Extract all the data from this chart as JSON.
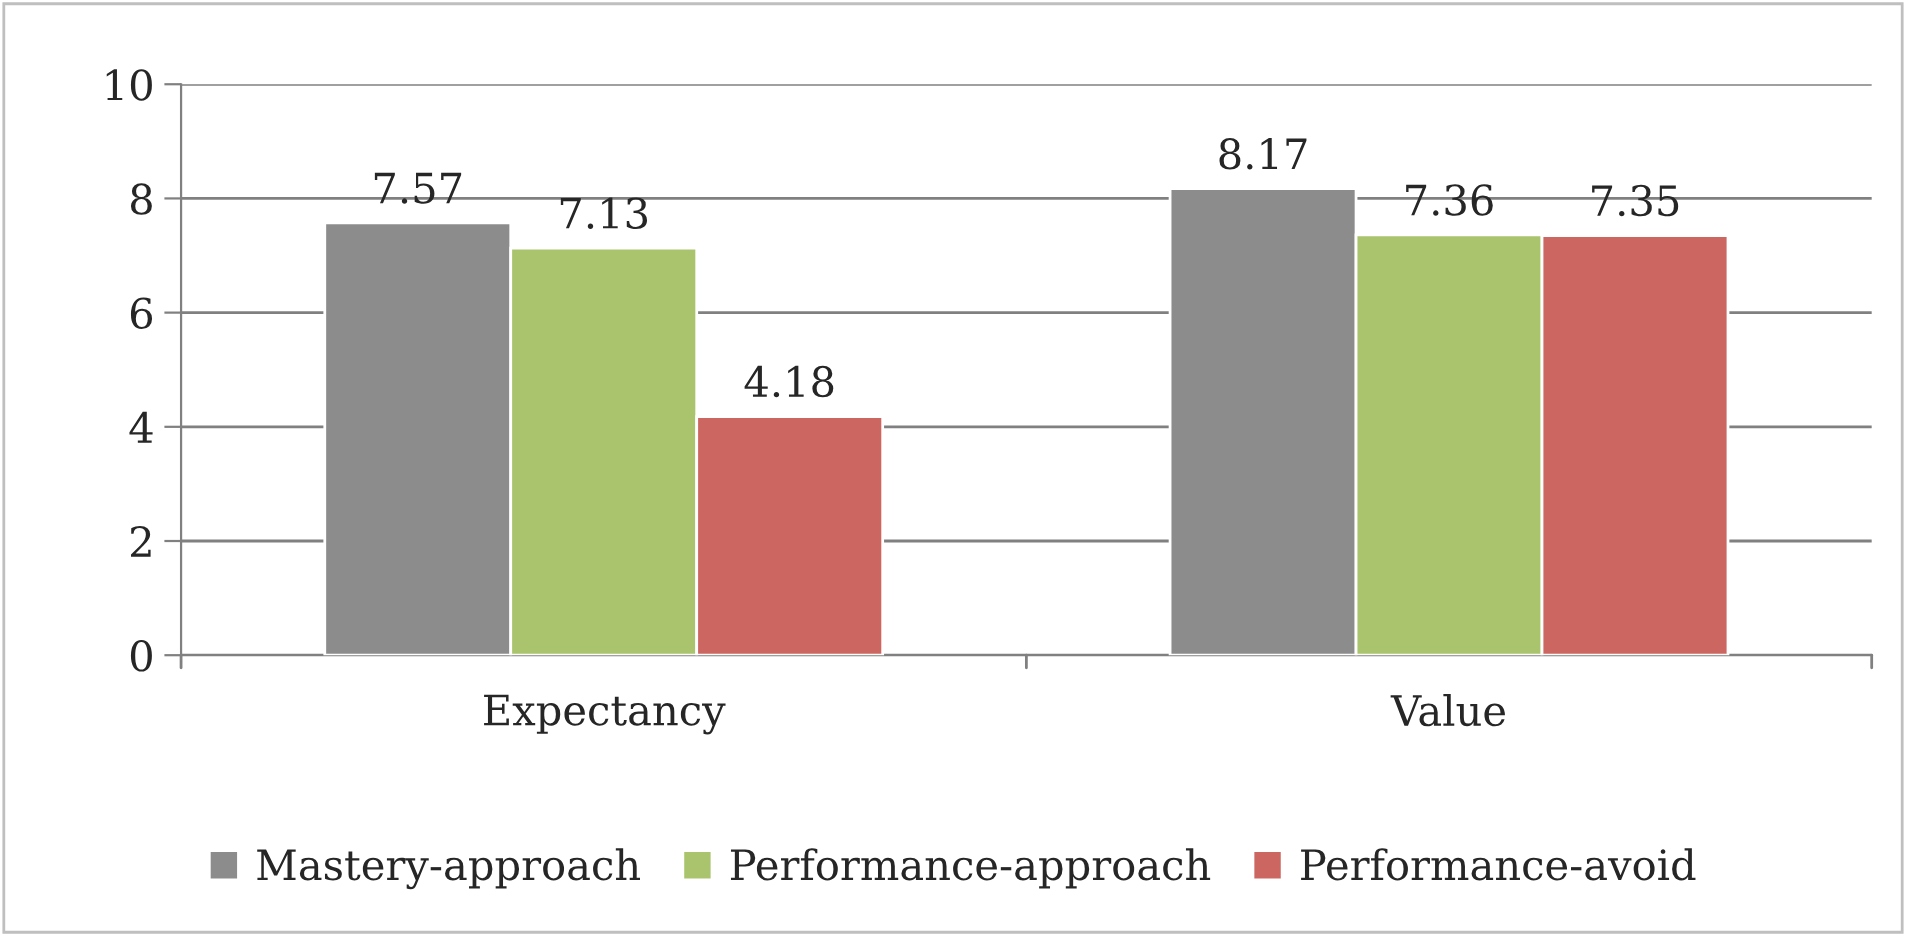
{
  "chart_data": {
    "type": "bar",
    "categories": [
      "Expectancy",
      "Value"
    ],
    "series": [
      {
        "name": "Mastery-approach",
        "color": "#8c8c8c",
        "values": [
          7.57,
          8.17
        ]
      },
      {
        "name": "Performance-approach",
        "color": "#a9c46c",
        "values": [
          7.13,
          7.36
        ]
      },
      {
        "name": "Performance-avoid",
        "color": "#cc6660",
        "values": [
          4.18,
          7.35
        ]
      }
    ],
    "ylim": [
      0,
      10
    ],
    "yticks": [
      0,
      2,
      4,
      6,
      8,
      10
    ],
    "grid": "y",
    "legend": "bottom",
    "data_labels": true
  }
}
